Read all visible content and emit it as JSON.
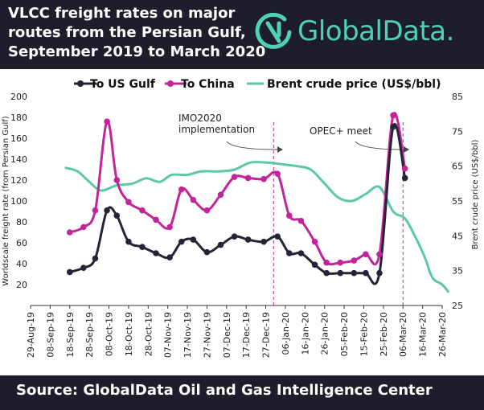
{
  "header": {
    "title_lines": [
      "VLCC freight rates on major",
      "routes from the Persian Gulf,",
      "September 2019 to March 2020"
    ],
    "logo_text": "GlobalData."
  },
  "footer": {
    "source": "Source:  GlobalData Oil and Gas Intelligence Center"
  },
  "colors": {
    "header_bg": "#1d1d2c",
    "us_gulf": "#242438",
    "china": "#c4249a",
    "brent": "#5cc9a4",
    "annotation": "#c4249a"
  },
  "chart_data": {
    "type": "line",
    "x_tick_labels": [
      "29-Aug-19",
      "08-Sep-19",
      "18-Sep-19",
      "28-Sep-19",
      "08-Oct-19",
      "18-Oct-19",
      "28-Oct-19",
      "07-Nov-19",
      "17-Nov-19",
      "27-Nov-19",
      "07-Dec-19",
      "17-Dec-19",
      "27-Dec-19",
      "06-Jan-20",
      "16-Jan-20",
      "26-Jan-20",
      "05-Feb-20",
      "15-Feb-20",
      "25-Feb-20",
      "06-Mar-20",
      "16-Mar-20",
      "26-Mar-20"
    ],
    "x_range": [
      "2019-08-29",
      "2020-03-26"
    ],
    "ylabel": "Worldscale freight rate (from Persian Gulf)",
    "ylim": [
      0,
      200
    ],
    "y_ticks": [
      20,
      40,
      60,
      80,
      100,
      120,
      140,
      160,
      180,
      200
    ],
    "y2label": "Brent crude price (US$/bbl)",
    "y2lim": [
      25,
      85
    ],
    "y2_ticks": [
      25,
      35,
      45,
      55,
      65,
      75,
      85
    ],
    "legend": [
      "To US Gulf",
      "To China",
      "Brent crude price (US$/bbl)"
    ],
    "series": [
      {
        "name": "To US Gulf",
        "axis": "left",
        "markers": true,
        "points": [
          [
            "2019-09-18",
            32
          ],
          [
            "2019-09-25",
            36
          ],
          [
            "2019-10-01",
            45
          ],
          [
            "2019-10-07",
            91
          ],
          [
            "2019-10-12",
            86
          ],
          [
            "2019-10-18",
            61
          ],
          [
            "2019-10-25",
            56
          ],
          [
            "2019-11-01",
            50
          ],
          [
            "2019-11-08",
            46
          ],
          [
            "2019-11-14",
            61
          ],
          [
            "2019-11-20",
            63
          ],
          [
            "2019-11-27",
            51
          ],
          [
            "2019-12-04",
            58
          ],
          [
            "2019-12-11",
            66
          ],
          [
            "2019-12-18",
            63
          ],
          [
            "2019-12-26",
            61
          ],
          [
            "2020-01-02",
            66
          ],
          [
            "2020-01-08",
            50
          ],
          [
            "2020-01-14",
            50
          ],
          [
            "2020-01-21",
            39
          ],
          [
            "2020-01-27",
            31
          ],
          [
            "2020-02-03",
            31
          ],
          [
            "2020-02-10",
            31
          ],
          [
            "2020-02-16",
            31
          ],
          [
            "2020-02-23",
            31
          ],
          [
            "2020-03-01",
            171
          ],
          [
            "2020-03-07",
            122
          ]
        ]
      },
      {
        "name": "To China",
        "axis": "left",
        "markers": true,
        "points": [
          [
            "2019-09-18",
            70
          ],
          [
            "2019-09-25",
            75
          ],
          [
            "2019-10-01",
            91
          ],
          [
            "2019-10-07",
            176
          ],
          [
            "2019-10-12",
            120
          ],
          [
            "2019-10-18",
            99
          ],
          [
            "2019-10-25",
            91
          ],
          [
            "2019-11-01",
            82
          ],
          [
            "2019-11-08",
            75
          ],
          [
            "2019-11-14",
            111
          ],
          [
            "2019-11-20",
            101
          ],
          [
            "2019-11-27",
            91
          ],
          [
            "2019-12-04",
            106
          ],
          [
            "2019-12-11",
            123
          ],
          [
            "2019-12-18",
            122
          ],
          [
            "2019-12-26",
            121
          ],
          [
            "2020-01-02",
            126
          ],
          [
            "2020-01-08",
            86
          ],
          [
            "2020-01-14",
            81
          ],
          [
            "2020-01-21",
            61
          ],
          [
            "2020-01-27",
            41
          ],
          [
            "2020-02-03",
            41
          ],
          [
            "2020-02-10",
            43
          ],
          [
            "2020-02-16",
            49
          ],
          [
            "2020-02-23",
            49
          ],
          [
            "2020-03-01",
            182
          ],
          [
            "2020-03-07",
            131
          ]
        ]
      },
      {
        "name": "Brent crude price (US$/bbl)",
        "axis": "right",
        "markers": false,
        "points": [
          [
            "2019-09-16",
            64.5
          ],
          [
            "2019-09-22",
            63.5
          ],
          [
            "2019-09-28",
            60.5
          ],
          [
            "2019-10-04",
            58
          ],
          [
            "2019-10-12",
            59.5
          ],
          [
            "2019-10-20",
            60
          ],
          [
            "2019-10-27",
            61.5
          ],
          [
            "2019-11-03",
            60.5
          ],
          [
            "2019-11-09",
            62.5
          ],
          [
            "2019-11-17",
            62.5
          ],
          [
            "2019-11-24",
            63.5
          ],
          [
            "2019-12-03",
            63.5
          ],
          [
            "2019-12-11",
            64
          ],
          [
            "2019-12-19",
            66
          ],
          [
            "2019-12-28",
            66
          ],
          [
            "2020-01-05",
            65.5
          ],
          [
            "2020-01-12",
            65
          ],
          [
            "2020-01-19",
            64
          ],
          [
            "2020-01-26",
            60
          ],
          [
            "2020-02-02",
            56
          ],
          [
            "2020-02-09",
            55
          ],
          [
            "2020-02-16",
            57
          ],
          [
            "2020-02-23",
            59
          ],
          [
            "2020-03-01",
            52
          ],
          [
            "2020-03-07",
            50
          ],
          [
            "2020-03-12",
            45
          ],
          [
            "2020-03-17",
            39
          ],
          [
            "2020-03-21",
            33
          ],
          [
            "2020-03-26",
            31
          ],
          [
            "2020-03-29",
            29
          ]
        ]
      }
    ],
    "annotations": [
      {
        "label_lines": [
          "IMO2020",
          "implementation"
        ],
        "date": "2019-12-31"
      },
      {
        "label_lines": [
          "OPEC+ meet"
        ],
        "date": "2020-03-06"
      }
    ]
  }
}
